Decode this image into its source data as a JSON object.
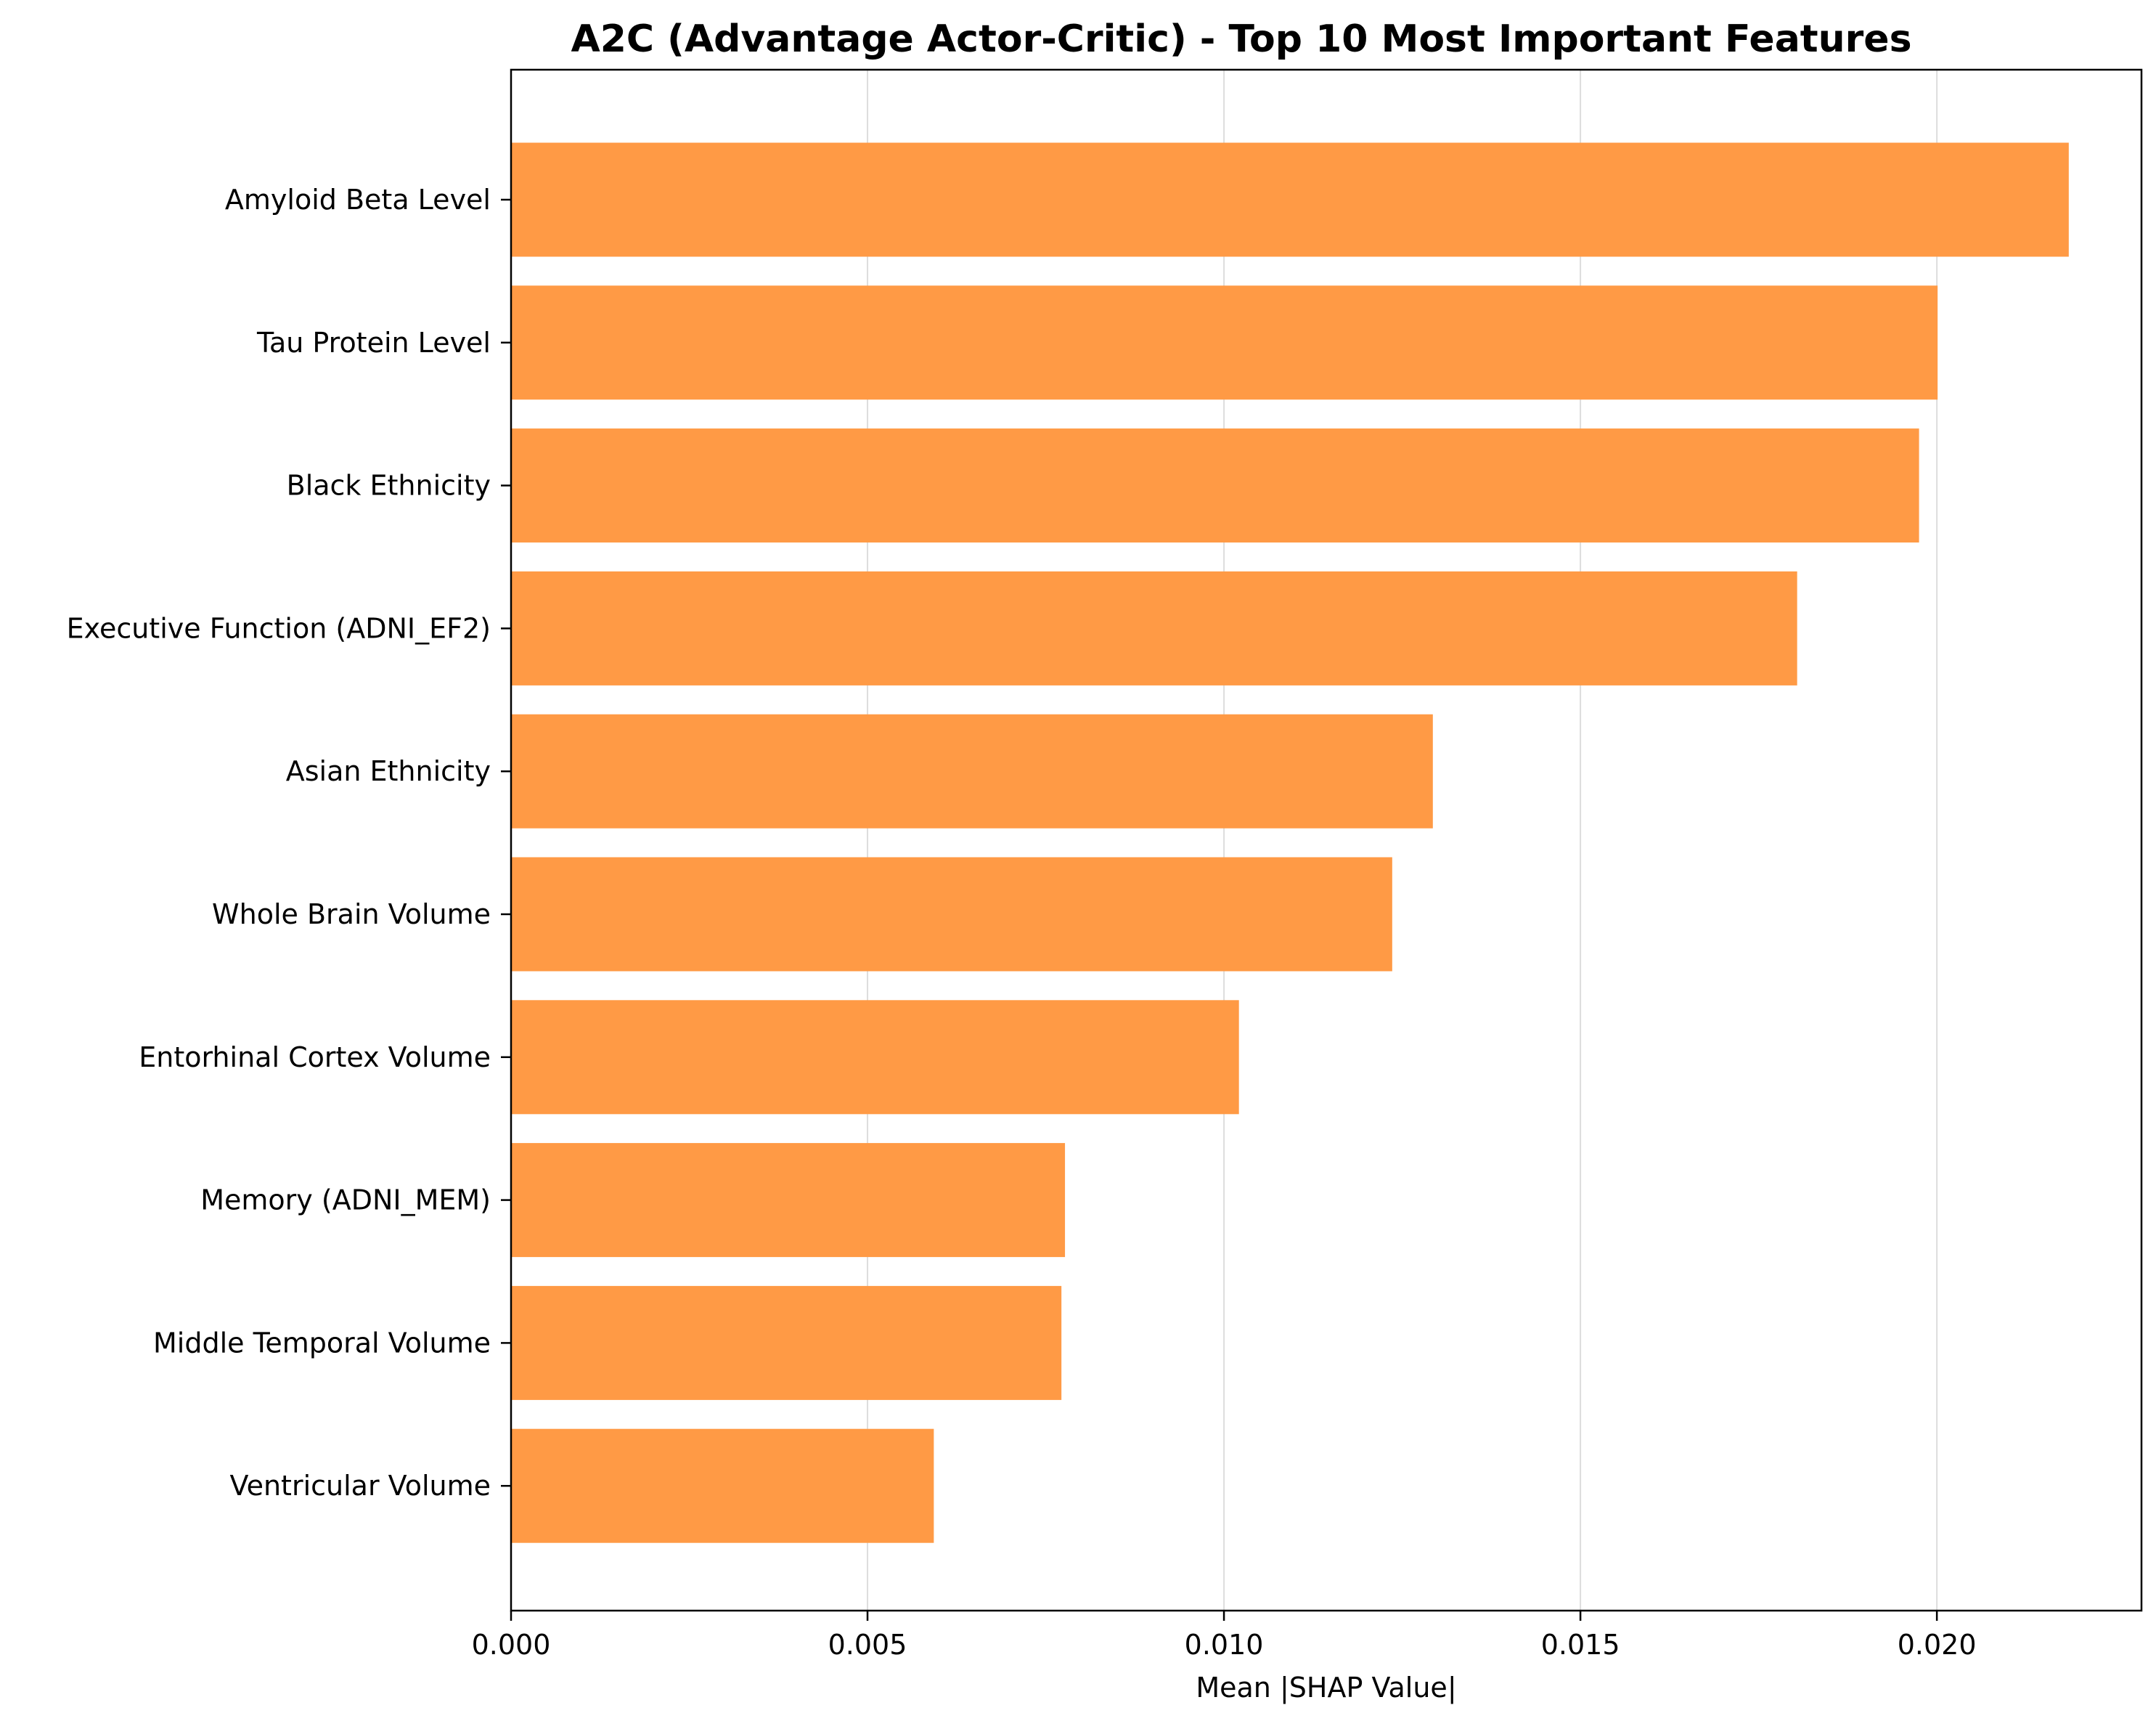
{
  "chart_data": {
    "type": "bar",
    "orientation": "horizontal",
    "title": "A2C (Advantage Actor-Critic) - Top 10 Most Important Features",
    "xlabel": "Mean |SHAP Value|",
    "ylabel": "",
    "categories": [
      "Amyloid Beta Level",
      "Tau Protein Level",
      "Black Ethnicity",
      "Executive Function (ADNI_EF2)",
      "Asian Ethnicity",
      "Whole Brain Volume",
      "Entorhinal Cortex Volume",
      "Memory (ADNI_MEM)",
      "Middle Temporal Volume",
      "Ventricular Volume"
    ],
    "values": [
      0.02185,
      0.02001,
      0.01975,
      0.01804,
      0.01293,
      0.01236,
      0.01021,
      0.00777,
      0.00772,
      0.00593
    ],
    "xlim": [
      0,
      0.02287
    ],
    "xticks": [
      "0.000",
      "0.005",
      "0.010",
      "0.015",
      "0.020"
    ],
    "xtick_values": [
      0,
      0.005,
      0.01,
      0.015,
      0.02
    ],
    "grid": "vertical",
    "legend": "none",
    "bar_color": "#ff9a45"
  }
}
